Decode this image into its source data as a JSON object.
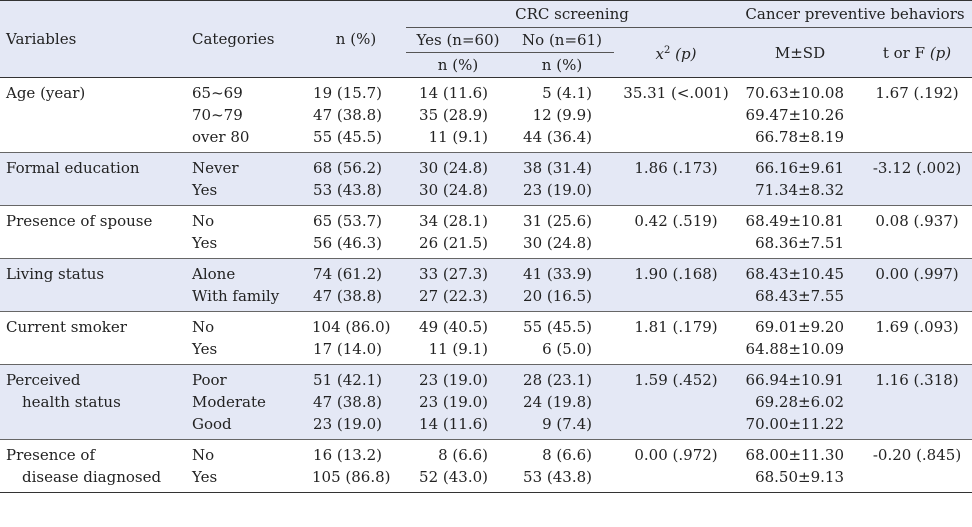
{
  "header": {
    "variables": "Variables",
    "categories": "Categories",
    "n_pct": "n (%)",
    "crc_screening": "CRC screening",
    "yes_n": "Yes (n=60)",
    "no_n": "No (n=61)",
    "sub_npct_yes": "n (%)",
    "sub_npct_no": "n (%)",
    "chi": "x",
    "chi_sup": "2",
    "chi_p": "(p)",
    "cancer_behaviors": "Cancer preventive behaviors",
    "msd": "M±SD",
    "torf": "t or F",
    "torf_p": "(p)"
  },
  "rows": [
    {
      "variable": [
        "Age (year)"
      ],
      "categories": [
        "65~69",
        "70~79",
        "over 80"
      ],
      "n": [
        "19 (15.7)",
        "47 (38.8)",
        "55 (45.5)"
      ],
      "yes": [
        "14 (11.6)",
        "35 (28.9)",
        "11 (9.1)"
      ],
      "no": [
        "5 (4.1)",
        "12 (9.9)",
        "44 (36.4)"
      ],
      "chi": "35.31 (<.001)",
      "msd": [
        "70.63±10.08",
        "69.47±10.26",
        "66.78±8.19"
      ],
      "t": "1.67 (.192)"
    },
    {
      "variable": [
        "Formal education"
      ],
      "categories": [
        "Never",
        "Yes"
      ],
      "n": [
        "68 (56.2)",
        "53 (43.8)"
      ],
      "yes": [
        "30 (24.8)",
        "30 (24.8)"
      ],
      "no": [
        "38 (31.4)",
        "23 (19.0)"
      ],
      "chi": "1.86 (.173)",
      "msd": [
        "66.16±9.61",
        "71.34±8.32"
      ],
      "t": "-3.12 (.002)"
    },
    {
      "variable": [
        "Presence of spouse"
      ],
      "categories": [
        "No",
        "Yes"
      ],
      "n": [
        "65 (53.7)",
        "56 (46.3)"
      ],
      "yes": [
        "34 (28.1)",
        "26 (21.5)"
      ],
      "no": [
        "31 (25.6)",
        "30 (24.8)"
      ],
      "chi": "0.42 (.519)",
      "msd": [
        "68.49±10.81",
        "68.36±7.51"
      ],
      "t": "0.08 (.937)"
    },
    {
      "variable": [
        "Living status"
      ],
      "categories": [
        "Alone",
        "With family"
      ],
      "n": [
        "74 (61.2)",
        "47 (38.8)"
      ],
      "yes": [
        "33 (27.3)",
        "27 (22.3)"
      ],
      "no": [
        "41 (33.9)",
        "20 (16.5)"
      ],
      "chi": "1.90 (.168)",
      "msd": [
        "68.43±10.45",
        "68.43±7.55"
      ],
      "t": "0.00 (.997)"
    },
    {
      "variable": [
        "Current smoker"
      ],
      "categories": [
        "No",
        "Yes"
      ],
      "n": [
        "104 (86.0)",
        "17 (14.0)"
      ],
      "yes": [
        "49 (40.5)",
        "11 (9.1)"
      ],
      "no": [
        "55 (45.5)",
        "6 (5.0)"
      ],
      "chi": "1.81 (.179)",
      "msd": [
        "69.01±9.20",
        "64.88±10.09"
      ],
      "t": "1.69 (.093)"
    },
    {
      "variable": [
        "Perceived",
        "  health status"
      ],
      "categories": [
        "Poor",
        "Moderate",
        "Good"
      ],
      "n": [
        "51 (42.1)",
        "47 (38.8)",
        "23 (19.0)"
      ],
      "yes": [
        "23 (19.0)",
        "23 (19.0)",
        "14 (11.6)"
      ],
      "no": [
        "28 (23.1)",
        "24 (19.8)",
        "9 (7.4)"
      ],
      "chi": "1.59 (.452)",
      "msd": [
        "66.94±10.91",
        "69.28±6.02",
        "70.00±11.22"
      ],
      "t": "1.16 (.318)"
    },
    {
      "variable": [
        "Presence of",
        "  disease diagnosed"
      ],
      "categories": [
        "No",
        "Yes"
      ],
      "n": [
        "16 (13.2)",
        "105 (86.8)"
      ],
      "yes": [
        "8 (6.6)",
        "52 (43.0)"
      ],
      "no": [
        "8 (6.6)",
        "53 (43.8)"
      ],
      "chi": "0.00 (.972)",
      "msd": [
        "68.00±11.30",
        "68.50±9.13"
      ],
      "t": "-0.20 (.845)"
    }
  ]
}
